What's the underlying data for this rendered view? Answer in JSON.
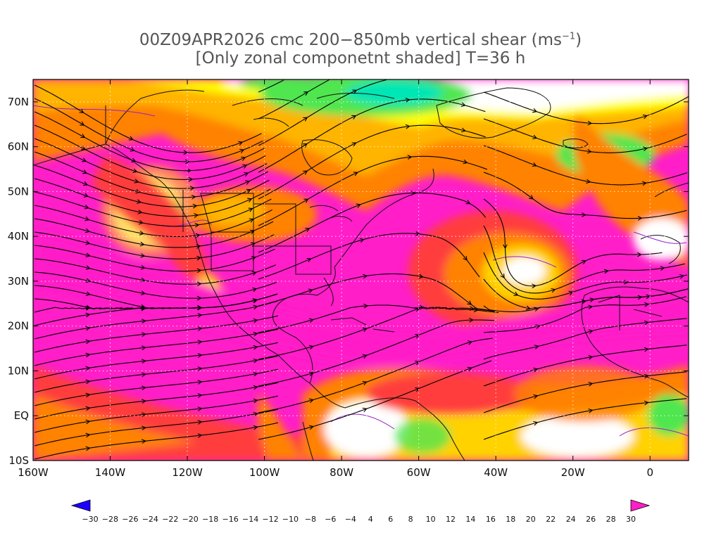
{
  "title": {
    "line1_prefix": "00Z09APR2026 cmc 200−850mb vertical shear (ms",
    "line1_exp": "−1",
    "line1_suffix": ")",
    "line2": "[Only zonal componetnt shaded] T=36 h"
  },
  "axes": {
    "lon_labels": [
      "160W",
      "140W",
      "120W",
      "100W",
      "80W",
      "60W",
      "40W",
      "20W",
      "0"
    ],
    "lat_labels": [
      "10S",
      "EQ",
      "10N",
      "20N",
      "30N",
      "40N",
      "50N",
      "60N",
      "70N"
    ]
  },
  "colorbar": {
    "labels": [
      "−30",
      "−28",
      "−26",
      "−24",
      "−22",
      "−20",
      "−18",
      "−16",
      "−14",
      "−12",
      "−10",
      "−8",
      "−6",
      "−4",
      "4",
      "6",
      "8",
      "10",
      "12",
      "14",
      "16",
      "18",
      "20",
      "22",
      "24",
      "26",
      "28",
      "30"
    ],
    "colors": [
      "#1e2bff",
      "#1e50ff",
      "#1e75ff",
      "#1e98ff",
      "#14b4ff",
      "#00d2ff",
      "#00e6e6",
      "#00e6b4",
      "#00e68c",
      "#00e65a",
      "#3ce632",
      "#82e628",
      "#b4e628",
      "#ffffff",
      "#ffff00",
      "#ffe600",
      "#ffcc00",
      "#ffb400",
      "#ff9b00",
      "#ff8200",
      "#ff6400",
      "#ff4600",
      "#ff1e28",
      "#ff1e64",
      "#ff1e8c",
      "#ff1eaa",
      "#ff1ec8"
    ]
  },
  "map_colors": {
    "magenta": "#ff1ec8",
    "pink": "#ff1e8c",
    "red": "#ff3c3c",
    "orange": "#ff8200",
    "yellow": "#ffd200",
    "green": "#50e650",
    "cyan": "#00e6b4",
    "white": "#ffffff"
  }
}
